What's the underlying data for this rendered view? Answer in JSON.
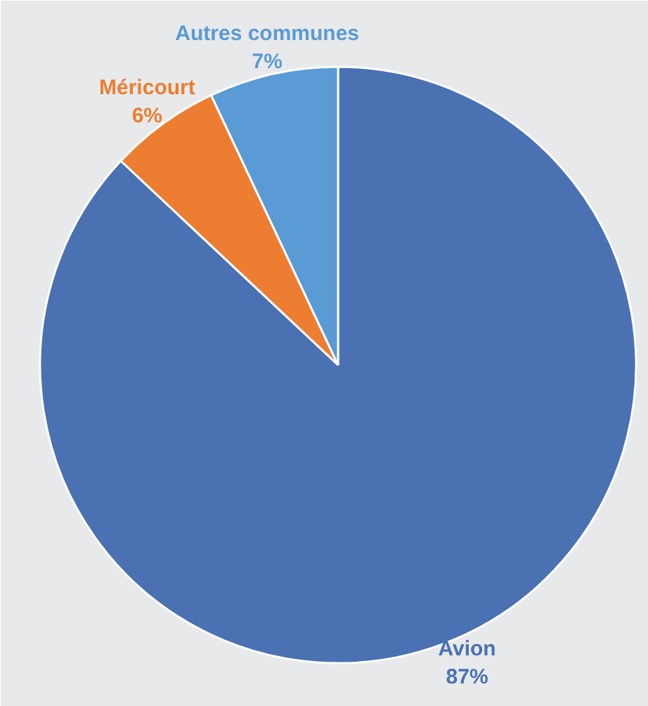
{
  "chart_data": {
    "type": "pie",
    "categories": [
      "Avion",
      "Méricourt",
      "Autres communes"
    ],
    "values": [
      87,
      6,
      7
    ],
    "colors": [
      "#4a72b2",
      "#ed7d31",
      "#5b9bd5"
    ],
    "value_labels": [
      "87%",
      "6%",
      "7%"
    ]
  }
}
